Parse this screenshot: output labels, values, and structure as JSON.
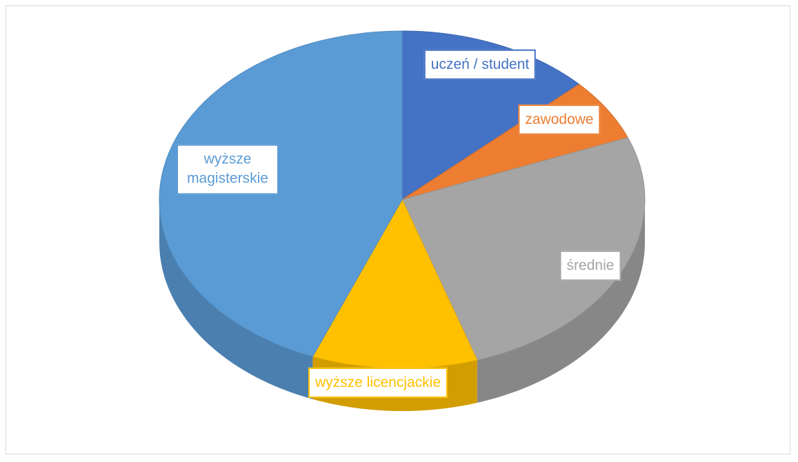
{
  "chart_data": {
    "type": "pie",
    "categories": [
      "uczeń / student",
      "zawodowe",
      "średnie",
      "wyższe licencjackie",
      "wyższe magisterskie"
    ],
    "values": [
      13,
      6,
      26,
      11,
      44
    ],
    "colors": [
      "#4472c4",
      "#ed7d31",
      "#a5a5a5",
      "#ffc000",
      "#5b9bd5"
    ]
  }
}
